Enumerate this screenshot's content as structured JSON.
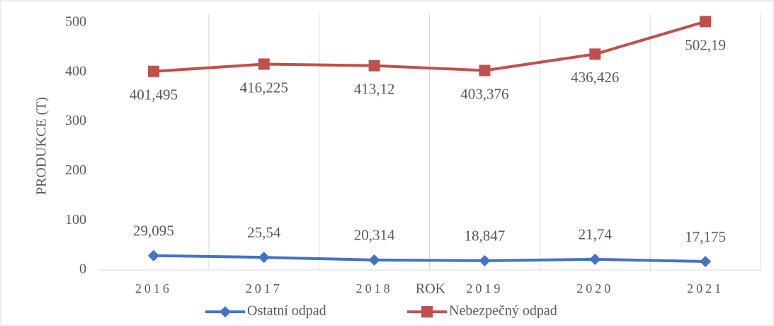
{
  "chart_data": {
    "type": "line",
    "x_label": "ROK",
    "y_label": "PRODUKCE (T)",
    "categories": [
      "2016",
      "2017",
      "2018",
      "2019",
      "2020",
      "2021"
    ],
    "series": [
      {
        "name": "Ostatní odpad",
        "color": "#4472c4",
        "marker": "diamond",
        "values": [
          29.095,
          25.54,
          20.314,
          18.847,
          21.74,
          17.175
        ],
        "value_labels": [
          "29,095",
          "25,54",
          "20,314",
          "18,847",
          "21,74",
          "17,175"
        ]
      },
      {
        "name": "Nebezpečný odpad",
        "color": "#c0504d",
        "marker": "square",
        "values": [
          401.495,
          416.225,
          413.12,
          403.376,
          436.426,
          502.19
        ],
        "value_labels": [
          "401,495",
          "416,225",
          "413,12",
          "403,376",
          "436,426",
          "502,19"
        ]
      }
    ],
    "ylim": [
      0,
      500
    ],
    "yticks": [
      0,
      100,
      200,
      300,
      400,
      500
    ],
    "grid": "vertical",
    "legend": "bottom"
  }
}
